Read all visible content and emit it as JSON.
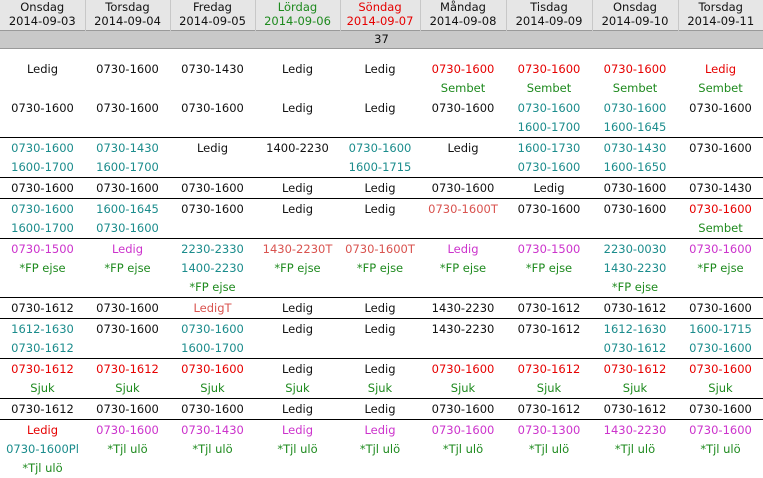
{
  "header": [
    {
      "day": "Onsdag",
      "date": "2014-09-03",
      "color": "#111111"
    },
    {
      "day": "Torsdag",
      "date": "2014-09-04",
      "color": "#111111"
    },
    {
      "day": "Fredag",
      "date": "2014-09-05",
      "color": "#111111"
    },
    {
      "day": "Lördag",
      "date": "2014-09-06",
      "color": "#1e8a1e"
    },
    {
      "day": "Söndag",
      "date": "2014-09-07",
      "color": "#e60000"
    },
    {
      "day": "Måndag",
      "date": "2014-09-08",
      "color": "#111111"
    },
    {
      "day": "Tisdag",
      "date": "2014-09-09",
      "color": "#111111"
    },
    {
      "day": "Onsdag",
      "date": "2014-09-10",
      "color": "#111111"
    },
    {
      "day": "Torsdag",
      "date": "2014-09-11",
      "color": "#111111"
    }
  ],
  "week": "37",
  "rows": [
    [
      [
        [
          "Ledig",
          "black"
        ]
      ],
      [
        [
          "0730-1600",
          "black"
        ]
      ],
      [
        [
          "0730-1430",
          "black"
        ]
      ],
      [
        [
          "Ledig",
          "black"
        ]
      ],
      [
        [
          "Ledig",
          "black"
        ]
      ],
      [
        [
          "0730-1600",
          "red"
        ],
        [
          "Sembet",
          "green"
        ]
      ],
      [
        [
          "0730-1600",
          "red"
        ],
        [
          "Sembet",
          "green"
        ]
      ],
      [
        [
          "0730-1600",
          "red"
        ],
        [
          "Sembet",
          "green"
        ]
      ],
      [
        [
          "Ledig",
          "red"
        ],
        [
          "Sembet",
          "green"
        ]
      ]
    ],
    [
      [
        [
          "0730-1600",
          "black"
        ]
      ],
      [
        [
          "0730-1600",
          "black"
        ]
      ],
      [
        [
          "0730-1600",
          "black"
        ]
      ],
      [
        [
          "Ledig",
          "black"
        ]
      ],
      [
        [
          "Ledig",
          "black"
        ]
      ],
      [
        [
          "0730-1600",
          "black"
        ]
      ],
      [
        [
          "0730-1600",
          "teal"
        ],
        [
          "1600-1700",
          "teal"
        ]
      ],
      [
        [
          "0730-1600",
          "teal"
        ],
        [
          "1600-1645",
          "teal"
        ]
      ],
      [
        [
          "0730-1600",
          "black"
        ]
      ]
    ],
    [
      [
        [
          "0730-1600",
          "teal"
        ],
        [
          "1600-1700",
          "teal"
        ]
      ],
      [
        [
          "0730-1430",
          "teal"
        ],
        [
          "1600-1700",
          "teal"
        ]
      ],
      [
        [
          "Ledig",
          "black"
        ]
      ],
      [
        [
          "1400-2230",
          "black"
        ]
      ],
      [
        [
          "0730-1600",
          "teal"
        ],
        [
          "1600-1715",
          "teal"
        ]
      ],
      [
        [
          "Ledig",
          "black"
        ]
      ],
      [
        [
          "1600-1730",
          "teal"
        ],
        [
          "0730-1600",
          "teal"
        ]
      ],
      [
        [
          "0730-1430",
          "teal"
        ],
        [
          "1600-1650",
          "teal"
        ]
      ],
      [
        [
          "0730-1600",
          "black"
        ]
      ]
    ],
    [
      [
        [
          "0730-1600",
          "black"
        ]
      ],
      [
        [
          "0730-1600",
          "black"
        ]
      ],
      [
        [
          "0730-1600",
          "black"
        ]
      ],
      [
        [
          "Ledig",
          "black"
        ]
      ],
      [
        [
          "Ledig",
          "black"
        ]
      ],
      [
        [
          "0730-1600",
          "black"
        ]
      ],
      [
        [
          "Ledig",
          "black"
        ]
      ],
      [
        [
          "0730-1600",
          "black"
        ]
      ],
      [
        [
          "0730-1430",
          "black"
        ]
      ]
    ],
    [
      [
        [
          "0730-1600",
          "teal"
        ],
        [
          "1600-1700",
          "teal"
        ]
      ],
      [
        [
          "1600-1645",
          "teal"
        ],
        [
          "0730-1600",
          "teal"
        ]
      ],
      [
        [
          "0730-1600",
          "black"
        ]
      ],
      [
        [
          "Ledig",
          "black"
        ]
      ],
      [
        [
          "Ledig",
          "black"
        ]
      ],
      [
        [
          "0730-1600T",
          "salmon"
        ]
      ],
      [
        [
          "0730-1600",
          "black"
        ]
      ],
      [
        [
          "0730-1600",
          "black"
        ]
      ],
      [
        [
          "0730-1600",
          "red"
        ],
        [
          "Sembet",
          "green"
        ]
      ]
    ],
    [
      [
        [
          "0730-1500",
          "pink"
        ],
        [
          "*FP ejse",
          "green"
        ]
      ],
      [
        [
          "Ledig",
          "pink"
        ],
        [
          "*FP ejse",
          "green"
        ]
      ],
      [
        [
          "2230-2330",
          "teal"
        ],
        [
          "1400-2230",
          "teal"
        ],
        [
          "*FP ejse",
          "green"
        ]
      ],
      [
        [
          "1430-2230T",
          "salmon"
        ],
        [
          "*FP ejse",
          "green"
        ]
      ],
      [
        [
          "0730-1600T",
          "salmon"
        ],
        [
          "*FP ejse",
          "green"
        ]
      ],
      [
        [
          "Ledig",
          "pink"
        ],
        [
          "*FP ejse",
          "green"
        ]
      ],
      [
        [
          "0730-1500",
          "pink"
        ],
        [
          "*FP ejse",
          "green"
        ]
      ],
      [
        [
          "2230-0030",
          "teal"
        ],
        [
          "1430-2230",
          "teal"
        ],
        [
          "*FP ejse",
          "green"
        ]
      ],
      [
        [
          "0730-1600",
          "pink"
        ],
        [
          "*FP ejse",
          "green"
        ]
      ]
    ],
    [
      [
        [
          "0730-1612",
          "black"
        ]
      ],
      [
        [
          "0730-1600",
          "black"
        ]
      ],
      [
        [
          "LedigT",
          "salmon"
        ]
      ],
      [
        [
          "Ledig",
          "black"
        ]
      ],
      [
        [
          "Ledig",
          "black"
        ]
      ],
      [
        [
          "1430-2230",
          "black"
        ]
      ],
      [
        [
          "0730-1612",
          "black"
        ]
      ],
      [
        [
          "0730-1612",
          "black"
        ]
      ],
      [
        [
          "0730-1600",
          "black"
        ]
      ]
    ],
    [
      [
        [
          "1612-1630",
          "teal"
        ],
        [
          "0730-1612",
          "teal"
        ]
      ],
      [
        [
          "0730-1600",
          "black"
        ]
      ],
      [
        [
          "0730-1600",
          "teal"
        ],
        [
          "1600-1700",
          "teal"
        ]
      ],
      [
        [
          "Ledig",
          "black"
        ]
      ],
      [
        [
          "Ledig",
          "black"
        ]
      ],
      [
        [
          "1430-2230",
          "black"
        ]
      ],
      [
        [
          "0730-1612",
          "black"
        ]
      ],
      [
        [
          "1612-1630",
          "teal"
        ],
        [
          "0730-1612",
          "teal"
        ]
      ],
      [
        [
          "1600-1715",
          "teal"
        ],
        [
          "0730-1600",
          "teal"
        ]
      ]
    ],
    [
      [
        [
          "0730-1612",
          "red"
        ],
        [
          "Sjuk",
          "green"
        ]
      ],
      [
        [
          "0730-1612",
          "red"
        ],
        [
          "Sjuk",
          "green"
        ]
      ],
      [
        [
          "0730-1600",
          "red"
        ],
        [
          "Sjuk",
          "green"
        ]
      ],
      [
        [
          "Ledig",
          "black"
        ],
        [
          "Sjuk",
          "green"
        ]
      ],
      [
        [
          "Ledig",
          "black"
        ],
        [
          "Sjuk",
          "green"
        ]
      ],
      [
        [
          "0730-1600",
          "red"
        ],
        [
          "Sjuk",
          "green"
        ]
      ],
      [
        [
          "0730-1612",
          "red"
        ],
        [
          "Sjuk",
          "green"
        ]
      ],
      [
        [
          "0730-1612",
          "red"
        ],
        [
          "Sjuk",
          "green"
        ]
      ],
      [
        [
          "0730-1600",
          "red"
        ],
        [
          "Sjuk",
          "green"
        ]
      ]
    ],
    [
      [
        [
          "0730-1612",
          "black"
        ]
      ],
      [
        [
          "0730-1600",
          "black"
        ]
      ],
      [
        [
          "0730-1600",
          "black"
        ]
      ],
      [
        [
          "Ledig",
          "black"
        ]
      ],
      [
        [
          "Ledig",
          "black"
        ]
      ],
      [
        [
          "0730-1600",
          "black"
        ]
      ],
      [
        [
          "0730-1612",
          "black"
        ]
      ],
      [
        [
          "0730-1612",
          "black"
        ]
      ],
      [
        [
          "0730-1600",
          "black"
        ]
      ]
    ],
    [
      [
        [
          "Ledig",
          "red"
        ],
        [
          "0730-1600Pl",
          "teal"
        ],
        [
          "*Tjl ulö",
          "green"
        ]
      ],
      [
        [
          "0730-1600",
          "pink"
        ],
        [
          "*Tjl ulö",
          "green"
        ]
      ],
      [
        [
          "0730-1430",
          "pink"
        ],
        [
          "*Tjl ulö",
          "green"
        ]
      ],
      [
        [
          "Ledig",
          "pink"
        ],
        [
          "*Tjl ulö",
          "green"
        ]
      ],
      [
        [
          "Ledig",
          "pink"
        ],
        [
          "*Tjl ulö",
          "green"
        ]
      ],
      [
        [
          "0730-1600",
          "pink"
        ],
        [
          "*Tjl ulö",
          "green"
        ]
      ],
      [
        [
          "0730-1300",
          "pink"
        ],
        [
          "*Tjl ulö",
          "green"
        ]
      ],
      [
        [
          "1430-2230",
          "pink"
        ],
        [
          "*Tjl ulö",
          "green"
        ]
      ],
      [
        [
          "0730-1600",
          "pink"
        ],
        [
          "*Tjl ulö",
          "green"
        ]
      ]
    ]
  ]
}
